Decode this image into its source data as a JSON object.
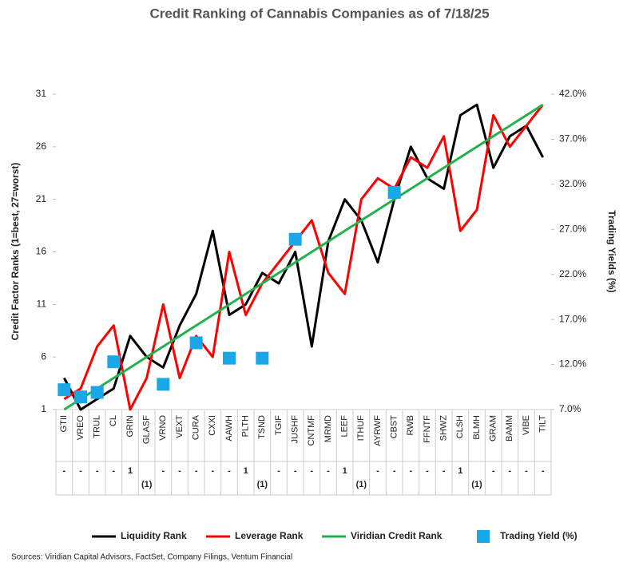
{
  "chart_data": {
    "type": "line",
    "title": "Credit Ranking of Cannabis Companies as of 7/18/25",
    "y_label": "Credit Factor Ranks (1=best, 27=worst)",
    "y2_label": "Trading Yields (%)",
    "source": "Sources: Viridian Capital Advisors, FactSet, Company Filings, Ventum Financial",
    "categories": [
      "GTII",
      "VREO",
      "TRUL",
      "CL",
      "GRIN",
      "GLASF",
      "VRNO",
      "VEXT",
      "CURA",
      "CXXI",
      "AAWH",
      "PLTH",
      "TSND",
      "TGIF",
      "JUSHF",
      "CNTMF",
      "MRMD",
      "LEEF",
      "ITHUF",
      "AYRWF",
      "CBST",
      "RWB",
      "FFNTF",
      "SHWZ",
      "CLSH",
      "BLMH",
      "GRAM",
      "BAMM",
      "VIBE",
      "TILT"
    ],
    "rank_change": [
      "-",
      "-",
      "-",
      "-",
      "1",
      "(1)",
      "-",
      "-",
      "-",
      "-",
      "-",
      "1",
      "(1)",
      "-",
      "-",
      "-",
      "-",
      "1",
      "(1)",
      "-",
      "-",
      "-",
      "-",
      "-",
      "1",
      "(1)",
      "-",
      "-",
      "-",
      "-"
    ],
    "ylim": [
      1,
      31
    ],
    "yticks": [
      1,
      6,
      11,
      16,
      21,
      26,
      31
    ],
    "y2lim": [
      7,
      42
    ],
    "y2ticks": [
      {
        "value": 7,
        "label": "7.0%"
      },
      {
        "value": 12,
        "label": "12.0%"
      },
      {
        "value": 17,
        "label": "17.0%"
      },
      {
        "value": 22,
        "label": "22.0%"
      },
      {
        "value": 27,
        "label": "27.0%"
      },
      {
        "value": 32,
        "label": "32.0%"
      },
      {
        "value": 37,
        "label": "37.0%"
      },
      {
        "value": 42,
        "label": "42.0%"
      }
    ],
    "series": [
      {
        "name": "Liquidity Rank",
        "type": "line",
        "color": "#000000",
        "values": [
          4,
          1,
          2,
          3,
          8,
          6,
          5,
          9,
          12,
          18,
          10,
          11,
          14,
          13,
          16,
          7,
          17,
          21,
          19,
          15,
          21,
          26,
          23,
          22,
          29,
          30,
          24,
          27,
          28,
          25
        ]
      },
      {
        "name": "Leverage Rank",
        "type": "line",
        "color": "#ff0000",
        "values": [
          2,
          3,
          7,
          9,
          1,
          4,
          11,
          4,
          8,
          6,
          16,
          10,
          13,
          15,
          17,
          19,
          14,
          12,
          21,
          23,
          22,
          25,
          24,
          27,
          18,
          20,
          29,
          26,
          28,
          30
        ]
      },
      {
        "name": "Viridian Credit Rank",
        "type": "line",
        "color": "#22b14c",
        "values": [
          1,
          2,
          3,
          4,
          5,
          6,
          7,
          8,
          9,
          10,
          11,
          12,
          13,
          14,
          15,
          16,
          17,
          18,
          19,
          20,
          21,
          22,
          23,
          24,
          25,
          26,
          27,
          28,
          29,
          30
        ]
      },
      {
        "name": "Trading Yield (%)",
        "type": "scatter",
        "axis": "y2",
        "color": "#1aa7e8",
        "values": [
          9.2,
          8.4,
          8.9,
          12.3,
          null,
          null,
          9.8,
          null,
          14.4,
          null,
          12.7,
          null,
          12.7,
          null,
          25.9,
          null,
          null,
          null,
          null,
          null,
          31.1,
          null,
          null,
          null,
          null,
          null,
          null,
          null,
          null,
          null
        ]
      }
    ]
  }
}
